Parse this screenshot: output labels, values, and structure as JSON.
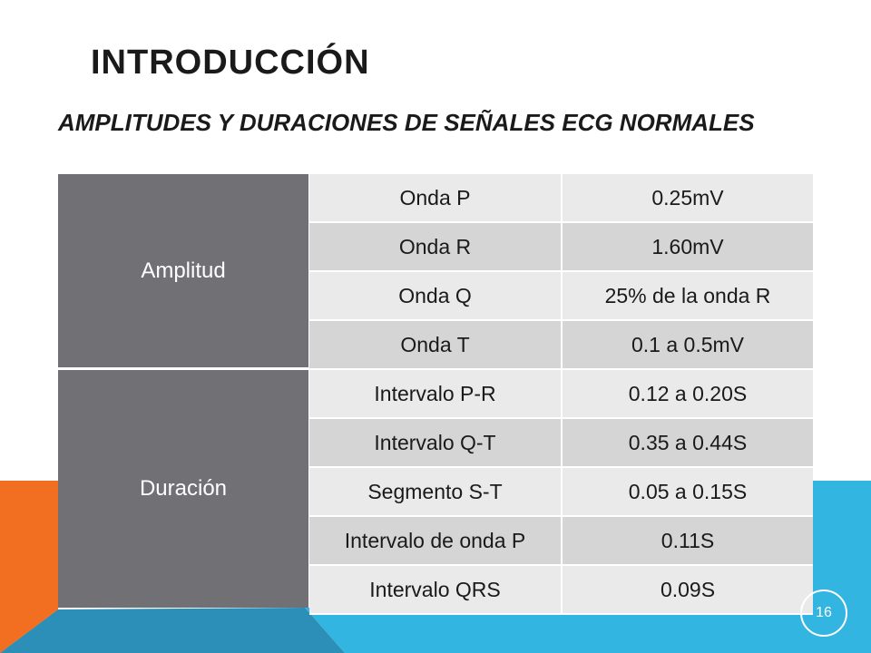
{
  "slide": {
    "title": "INTRODUCCIÓN",
    "subtitle": "AMPLITUDES Y DURACIONES DE SEÑALES ECG NORMALES",
    "page_number": "16",
    "colors": {
      "orange": "#f26f21",
      "blue": "#33b5e1",
      "dark_blue": "#2b8fb8",
      "group_gray": "#717175"
    }
  },
  "table": {
    "groups": [
      {
        "label": "Amplitud",
        "rows": [
          {
            "name": "Onda P",
            "value": "0.25mV"
          },
          {
            "name": "Onda R",
            "value": "1.60mV"
          },
          {
            "name": "Onda Q",
            "value": "25% de la onda R"
          },
          {
            "name": "Onda T",
            "value": "0.1 a 0.5mV"
          }
        ]
      },
      {
        "label": "Duración",
        "rows": [
          {
            "name": "Intervalo P-R",
            "value": "0.12 a 0.20S"
          },
          {
            "name": "Intervalo Q-T",
            "value": "0.35 a 0.44S"
          },
          {
            "name": "Segmento S-T",
            "value": "0.05 a 0.15S"
          },
          {
            "name": "Intervalo de onda P",
            "value": "0.11S"
          },
          {
            "name": "Intervalo QRS",
            "value": "0.09S"
          }
        ]
      }
    ]
  }
}
